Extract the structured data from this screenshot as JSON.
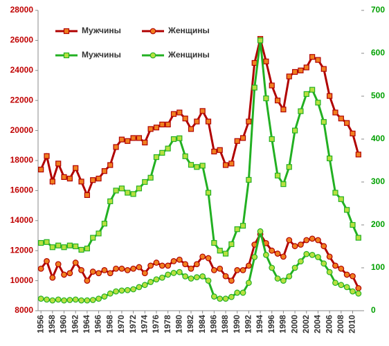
{
  "chart_data": {
    "type": "line",
    "x": [
      1956,
      1957,
      1958,
      1959,
      1960,
      1961,
      1962,
      1963,
      1964,
      1965,
      1966,
      1967,
      1968,
      1969,
      1970,
      1971,
      1972,
      1973,
      1974,
      1975,
      1976,
      1977,
      1978,
      1979,
      1980,
      1981,
      1982,
      1983,
      1984,
      1985,
      1986,
      1987,
      1988,
      1989,
      1990,
      1991,
      1992,
      1993,
      1994,
      1995,
      1996,
      1997,
      1998,
      1999,
      2000,
      2001,
      2002,
      2003,
      2004,
      2005,
      2006,
      2007,
      2008,
      2009,
      2010,
      2011
    ],
    "xlim": [
      1955.5,
      2011.5
    ],
    "xticks": [
      1956,
      1958,
      1960,
      1962,
      1964,
      1966,
      1968,
      1970,
      1972,
      1974,
      1976,
      1978,
      1980,
      1982,
      1984,
      1986,
      1988,
      1990,
      1992,
      1994,
      1996,
      1998,
      2000,
      2002,
      2004,
      2006,
      2008,
      2010
    ],
    "ylim": [
      8000,
      28000
    ],
    "yticks": [
      8000,
      10000,
      12000,
      14000,
      16000,
      18000,
      20000,
      22000,
      24000,
      26000,
      28000
    ],
    "y2lim": [
      0,
      700
    ],
    "y2ticks": [
      0,
      100,
      200,
      300,
      400,
      500,
      600,
      700
    ],
    "ytick_color": "#c00000",
    "y2tick_color": "#00a000",
    "series": [
      {
        "name": "Мужчины",
        "color": "#b00000",
        "marker_color": "#f08020",
        "marker": "square",
        "values": [
          17400,
          18300,
          16600,
          17800,
          16900,
          16800,
          17500,
          16600,
          15700,
          16700,
          16800,
          17300,
          17700,
          18900,
          19400,
          19300,
          19500,
          19500,
          19200,
          20100,
          20200,
          20400,
          20400,
          21100,
          21200,
          20800,
          20100,
          20600,
          21300,
          20600,
          18600,
          18700,
          17700,
          17800,
          19300,
          19500,
          20600,
          24500,
          26100,
          24600,
          23000,
          22000,
          21400,
          23600,
          23900,
          24000,
          24200,
          24900,
          24700,
          24100,
          22300,
          21200,
          20800,
          20500,
          19800,
          18400
        ]
      },
      {
        "name": "Женщины",
        "color": "#b00000",
        "marker_color": "#f08020",
        "marker": "circle",
        "values": [
          10800,
          11300,
          10200,
          11100,
          10400,
          10500,
          11200,
          10700,
          10000,
          10600,
          10500,
          10700,
          10500,
          10800,
          10800,
          10700,
          10800,
          10900,
          10500,
          11000,
          11200,
          11000,
          11000,
          11300,
          11400,
          11100,
          10800,
          11100,
          11600,
          11500,
          10700,
          10800,
          10300,
          10000,
          10700,
          10700,
          11000,
          12400,
          13100,
          12500,
          12000,
          11800,
          11600,
          12700,
          12300,
          12400,
          12700,
          12800,
          12700,
          12300,
          11600,
          11000,
          10800,
          10400,
          10300,
          9500
        ]
      },
      {
        "name": "Мужчины",
        "color": "#22b022",
        "marker_color": "#b8e040",
        "marker": "square",
        "axis": "y2",
        "values": [
          158,
          160,
          148,
          152,
          148,
          152,
          150,
          142,
          145,
          170,
          180,
          203,
          255,
          280,
          285,
          275,
          272,
          285,
          300,
          310,
          358,
          368,
          378,
          400,
          402,
          360,
          340,
          335,
          338,
          275,
          158,
          140,
          133,
          155,
          190,
          198,
          305,
          520,
          630,
          495,
          400,
          315,
          295,
          335,
          420,
          465,
          505,
          515,
          485,
          440,
          355,
          275,
          260,
          235,
          200,
          170
        ]
      },
      {
        "name": "Женщины",
        "color": "#22b022",
        "marker_color": "#b8e040",
        "marker": "circle",
        "axis": "y2",
        "values": [
          28,
          26,
          24,
          26,
          24,
          25,
          26,
          24,
          24,
          25,
          28,
          33,
          40,
          45,
          47,
          48,
          50,
          55,
          60,
          67,
          73,
          77,
          84,
          88,
          90,
          80,
          75,
          78,
          80,
          70,
          33,
          28,
          28,
          32,
          42,
          42,
          65,
          125,
          185,
          130,
          100,
          75,
          70,
          80,
          100,
          115,
          132,
          130,
          125,
          110,
          90,
          65,
          60,
          55,
          45,
          40
        ]
      }
    ]
  }
}
